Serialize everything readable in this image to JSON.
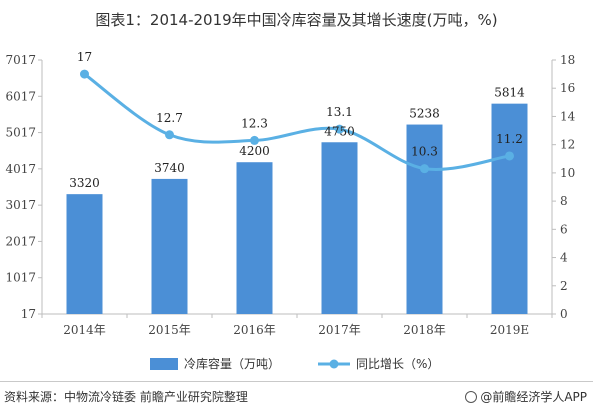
{
  "page": {
    "source": "资料来源：中物流冷链委 前瞻产业研究院整理",
    "credit": "@前瞻经济学人APP"
  },
  "chart_data": {
    "type": "bar",
    "title": "图表1：2014-2019年中国冷库容量及其增长速度(万吨，%)",
    "categories": [
      "2014年",
      "2015年",
      "2016年",
      "2017年",
      "2018年",
      "2019E"
    ],
    "series": [
      {
        "name": "冷库容量（万吨）",
        "type": "bar",
        "axis": "left",
        "color": "#4b8fd6",
        "values": [
          3320,
          3740,
          4200,
          4750,
          5238,
          5814
        ]
      },
      {
        "name": "同比增长（%）",
        "type": "line",
        "axis": "right",
        "color": "#5ab0e4",
        "values": [
          17,
          12.7,
          12.3,
          13.1,
          10.3,
          11.2
        ]
      }
    ],
    "y_left": {
      "min": 17,
      "max": 7017,
      "ticks": [
        "17",
        "1017",
        "2017",
        "3017",
        "4017",
        "5017",
        "6017",
        "7017"
      ]
    },
    "y_right": {
      "min": 0,
      "max": 18,
      "ticks": [
        "0",
        "2",
        "4",
        "6",
        "8",
        "10",
        "12",
        "14",
        "16",
        "18"
      ]
    },
    "legend_position": "bottom",
    "grid": false
  }
}
